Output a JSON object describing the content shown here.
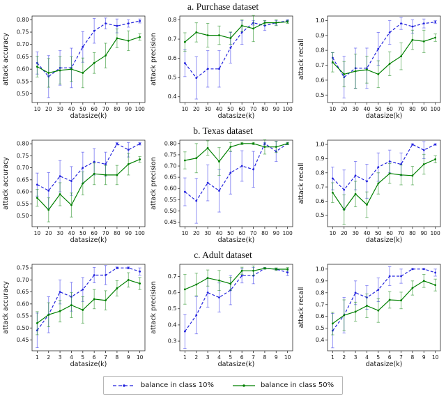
{
  "figure": {
    "background": "#ffffff",
    "spine_color": "#2a2a2a",
    "tick_label_color": "#111111"
  },
  "sections": [
    {
      "title": "a. Purchase dataset"
    },
    {
      "title": "b. Texas dataset"
    },
    {
      "title": "c. Adult dataset"
    }
  ],
  "legend": {
    "items": [
      {
        "label": "balance in class 10%",
        "color": "#2222dd",
        "dash": true
      },
      {
        "label": "balance in class 50%",
        "color": "#008000",
        "dash": false
      }
    ]
  },
  "chart_data": [
    {
      "type": "line",
      "dataset": "Purchase",
      "xlabel": "datasize(k)",
      "ylabel": "attack accuracy",
      "x": [
        10,
        20,
        30,
        40,
        50,
        60,
        70,
        80,
        90,
        100
      ],
      "xtick_labels": [
        "10",
        "20",
        "30",
        "40",
        "50",
        "60",
        "70",
        "80",
        "90",
        "100"
      ],
      "yticks": [
        0.5,
        0.55,
        0.6,
        0.65,
        0.7,
        0.75,
        0.8
      ],
      "ytick_labels": [
        "0.50",
        "0.55",
        "0.60",
        "0.65",
        "0.70",
        "0.75",
        "0.80"
      ],
      "ylim": [
        0.465,
        0.815
      ],
      "grid": false,
      "series": [
        {
          "name": "balance in class 10%",
          "color": "#2222dd",
          "ecolor": "rgba(60,60,235,0.55)",
          "dash": true,
          "values": [
            0.625,
            0.57,
            0.605,
            0.605,
            0.69,
            0.755,
            0.785,
            0.775,
            0.785,
            0.795
          ],
          "err": [
            0.045,
            0.085,
            0.07,
            0.08,
            0.062,
            0.05,
            0.022,
            0.028,
            0.015,
            0.008
          ]
        },
        {
          "name": "balance in class 50%",
          "color": "#008000",
          "ecolor": "rgba(30,140,30,0.55)",
          "dash": false,
          "values": [
            0.61,
            0.585,
            0.595,
            0.6,
            0.585,
            0.625,
            0.655,
            0.725,
            0.715,
            0.73
          ],
          "err": [
            0.042,
            0.058,
            0.055,
            0.05,
            0.06,
            0.042,
            0.05,
            0.038,
            0.04,
            0.013
          ]
        }
      ]
    },
    {
      "type": "line",
      "dataset": "Purchase",
      "xlabel": "datasize(k)",
      "ylabel": "attack precision",
      "x": [
        10,
        20,
        30,
        40,
        50,
        60,
        70,
        80,
        90,
        100
      ],
      "xtick_labels": [
        "10",
        "20",
        "30",
        "40",
        "50",
        "60",
        "70",
        "80",
        "90",
        "100"
      ],
      "yticks": [
        0.4,
        0.5,
        0.6,
        0.7,
        0.8
      ],
      "ytick_labels": [
        "0.4",
        "0.5",
        "0.6",
        "0.7",
        "0.8"
      ],
      "ylim": [
        0.37,
        0.82
      ],
      "grid": false,
      "series": [
        {
          "name": "balance in class 10%",
          "color": "#2222dd",
          "ecolor": "rgba(60,60,235,0.55)",
          "dash": true,
          "values": [
            0.575,
            0.498,
            0.545,
            0.545,
            0.655,
            0.735,
            0.785,
            0.77,
            0.785,
            0.795
          ],
          "err": [
            0.07,
            0.11,
            0.095,
            0.095,
            0.08,
            0.062,
            0.012,
            0.025,
            0.012,
            0.006
          ]
        },
        {
          "name": "balance in class 50%",
          "color": "#008000",
          "ecolor": "rgba(30,140,30,0.55)",
          "dash": false,
          "values": [
            0.685,
            0.735,
            0.72,
            0.72,
            0.705,
            0.77,
            0.755,
            0.785,
            0.785,
            0.79
          ],
          "err": [
            0.048,
            0.05,
            0.062,
            0.048,
            0.032,
            0.03,
            0.068,
            0.012,
            0.015,
            0.008
          ]
        }
      ]
    },
    {
      "type": "line",
      "dataset": "Purchase",
      "xlabel": "datasize(k)",
      "ylabel": "attack recall",
      "x": [
        10,
        20,
        30,
        40,
        50,
        60,
        70,
        80,
        90,
        100
      ],
      "xtick_labels": [
        "10",
        "20",
        "30",
        "40",
        "50",
        "60",
        "70",
        "80",
        "90",
        "100"
      ],
      "yticks": [
        0.5,
        0.6,
        0.7,
        0.8,
        0.9,
        1.0
      ],
      "ytick_labels": [
        "0.5",
        "0.6",
        "0.7",
        "0.8",
        "0.9",
        "1.0"
      ],
      "ylim": [
        0.45,
        1.03
      ],
      "grid": false,
      "series": [
        {
          "name": "balance in class 10%",
          "color": "#2222dd",
          "ecolor": "rgba(60,60,235,0.55)",
          "dash": true,
          "values": [
            0.75,
            0.62,
            0.68,
            0.68,
            0.81,
            0.92,
            0.98,
            0.96,
            0.98,
            0.99
          ],
          "err": [
            0.035,
            0.14,
            0.135,
            0.135,
            0.11,
            0.08,
            0.04,
            0.045,
            0.03,
            0.01
          ]
        },
        {
          "name": "balance in class 50%",
          "color": "#008000",
          "ecolor": "rgba(30,140,30,0.55)",
          "dash": false,
          "values": [
            0.72,
            0.64,
            0.66,
            0.67,
            0.64,
            0.71,
            0.76,
            0.87,
            0.86,
            0.885
          ],
          "err": [
            0.065,
            0.085,
            0.115,
            0.09,
            0.09,
            0.08,
            0.09,
            0.065,
            0.075,
            0.025
          ]
        }
      ]
    },
    {
      "type": "line",
      "dataset": "Texas",
      "xlabel": "datasize(k)",
      "ylabel": "attack accuracy",
      "x": [
        10,
        20,
        30,
        40,
        50,
        60,
        70,
        80,
        90,
        100
      ],
      "xtick_labels": [
        "10",
        "20",
        "30",
        "40",
        "50",
        "60",
        "70",
        "80",
        "90",
        "100"
      ],
      "yticks": [
        0.5,
        0.55,
        0.6,
        0.65,
        0.7,
        0.75,
        0.8
      ],
      "ytick_labels": [
        "0.50",
        "0.55",
        "0.60",
        "0.65",
        "0.70",
        "0.75",
        "0.80"
      ],
      "ylim": [
        0.455,
        0.815
      ],
      "grid": false,
      "series": [
        {
          "name": "balance in class 10%",
          "color": "#2222dd",
          "ecolor": "rgba(60,60,235,0.55)",
          "dash": true,
          "values": [
            0.63,
            0.605,
            0.665,
            0.645,
            0.7,
            0.725,
            0.715,
            0.8,
            0.775,
            0.8
          ],
          "err": [
            0.048,
            0.075,
            0.065,
            0.06,
            0.065,
            0.055,
            0.05,
            0.005,
            0.03,
            0.005
          ]
        },
        {
          "name": "balance in class 50%",
          "color": "#008000",
          "ecolor": "rgba(30,140,30,0.55)",
          "dash": false,
          "values": [
            0.575,
            0.525,
            0.59,
            0.545,
            0.635,
            0.675,
            0.67,
            0.67,
            0.715,
            0.735
          ],
          "err": [
            0.035,
            0.05,
            0.048,
            0.05,
            0.048,
            0.045,
            0.04,
            0.04,
            0.045,
            0.012
          ]
        }
      ]
    },
    {
      "type": "line",
      "dataset": "Texas",
      "xlabel": "datasize(k)",
      "ylabel": "attack precision",
      "x": [
        10,
        20,
        30,
        40,
        50,
        60,
        70,
        80,
        90,
        100
      ],
      "xtick_labels": [
        "10",
        "20",
        "30",
        "40",
        "50",
        "60",
        "70",
        "80",
        "90",
        "100"
      ],
      "yticks": [
        0.45,
        0.5,
        0.55,
        0.6,
        0.65,
        0.7,
        0.75,
        0.8
      ],
      "ytick_labels": [
        "0.45",
        "0.50",
        "0.55",
        "0.60",
        "0.65",
        "0.70",
        "0.75",
        "0.80"
      ],
      "ylim": [
        0.43,
        0.815
      ],
      "grid": false,
      "series": [
        {
          "name": "balance in class 10%",
          "color": "#2222dd",
          "ecolor": "rgba(60,60,235,0.55)",
          "dash": true,
          "values": [
            0.585,
            0.545,
            0.625,
            0.59,
            0.67,
            0.7,
            0.685,
            0.8,
            0.765,
            0.8
          ],
          "err": [
            0.062,
            0.1,
            0.08,
            0.095,
            0.095,
            0.068,
            0.08,
            0.005,
            0.045,
            0.005
          ]
        },
        {
          "name": "balance in class 50%",
          "color": "#008000",
          "ecolor": "rgba(30,140,30,0.55)",
          "dash": false,
          "values": [
            0.725,
            0.735,
            0.78,
            0.72,
            0.785,
            0.8,
            0.8,
            0.785,
            0.785,
            0.8
          ],
          "err": [
            0.038,
            0.065,
            0.032,
            0.062,
            0.02,
            0.005,
            0.005,
            0.032,
            0.025,
            0.005
          ]
        }
      ]
    },
    {
      "type": "line",
      "dataset": "Texas",
      "xlabel": "datasize(k)",
      "ylabel": "attack recall",
      "x": [
        10,
        20,
        30,
        40,
        50,
        60,
        70,
        80,
        90,
        100
      ],
      "xtick_labels": [
        "10",
        "20",
        "30",
        "40",
        "50",
        "60",
        "70",
        "80",
        "90",
        "100"
      ],
      "yticks": [
        0.5,
        0.6,
        0.7,
        0.8,
        0.9,
        1.0
      ],
      "ytick_labels": [
        "0.5",
        "0.6",
        "0.7",
        "0.8",
        "0.9",
        "1.0"
      ],
      "ylim": [
        0.42,
        1.03
      ],
      "grid": false,
      "series": [
        {
          "name": "balance in class 10%",
          "color": "#2222dd",
          "ecolor": "rgba(60,60,235,0.55)",
          "dash": true,
          "values": [
            0.76,
            0.68,
            0.78,
            0.74,
            0.84,
            0.88,
            0.86,
            1.0,
            0.96,
            1.0
          ],
          "err": [
            0.08,
            0.14,
            0.1,
            0.12,
            0.1,
            0.08,
            0.08,
            0.005,
            0.06,
            0.005
          ]
        },
        {
          "name": "balance in class 50%",
          "color": "#008000",
          "ecolor": "rgba(30,140,30,0.55)",
          "dash": false,
          "values": [
            0.66,
            0.54,
            0.65,
            0.575,
            0.725,
            0.795,
            0.785,
            0.78,
            0.86,
            0.895
          ],
          "err": [
            0.07,
            0.105,
            0.09,
            0.09,
            0.075,
            0.07,
            0.07,
            0.065,
            0.07,
            0.025
          ]
        }
      ]
    },
    {
      "type": "line",
      "dataset": "Adult",
      "xlabel": "datasize(k)",
      "ylabel": "attack accuracy",
      "x": [
        1,
        2,
        3,
        4,
        5,
        6,
        7,
        8,
        9,
        10
      ],
      "xtick_labels": [
        "1",
        "2",
        "3",
        "4",
        "5",
        "6",
        "7",
        "8",
        "9",
        "10"
      ],
      "yticks": [
        0.45,
        0.5,
        0.55,
        0.6,
        0.65,
        0.7,
        0.75
      ],
      "ytick_labels": [
        "0.45",
        "0.50",
        "0.55",
        "0.60",
        "0.65",
        "0.70",
        "0.75"
      ],
      "ylim": [
        0.405,
        0.765
      ],
      "grid": false,
      "series": [
        {
          "name": "balance in class 10%",
          "color": "#2222dd",
          "ecolor": "rgba(60,60,235,0.55)",
          "dash": true,
          "values": [
            0.49,
            0.555,
            0.65,
            0.63,
            0.66,
            0.72,
            0.72,
            0.75,
            0.75,
            0.735
          ],
          "err": [
            0.072,
            0.075,
            0.05,
            0.06,
            0.05,
            0.032,
            0.04,
            0.004,
            0.004,
            0.015
          ]
        },
        {
          "name": "balance in class 50%",
          "color": "#008000",
          "ecolor": "rgba(30,140,30,0.55)",
          "dash": false,
          "values": [
            0.52,
            0.555,
            0.57,
            0.595,
            0.575,
            0.62,
            0.615,
            0.665,
            0.7,
            0.685
          ],
          "err": [
            0.048,
            0.05,
            0.045,
            0.052,
            0.055,
            0.04,
            0.04,
            0.032,
            0.03,
            0.025
          ]
        }
      ]
    },
    {
      "type": "line",
      "dataset": "Adult",
      "xlabel": "datasize(k)",
      "ylabel": "attack precision",
      "x": [
        1,
        2,
        3,
        4,
        5,
        6,
        7,
        8,
        9,
        10
      ],
      "xtick_labels": [
        "1",
        "2",
        "3",
        "4",
        "5",
        "6",
        "7",
        "8",
        "9",
        "10"
      ],
      "yticks": [
        0.3,
        0.4,
        0.5,
        0.6,
        0.7
      ],
      "ytick_labels": [
        "0.3",
        "0.4",
        "0.5",
        "0.6",
        "0.7"
      ],
      "ylim": [
        0.24,
        0.775
      ],
      "grid": false,
      "series": [
        {
          "name": "balance in class 10%",
          "color": "#2222dd",
          "ecolor": "rgba(60,60,235,0.55)",
          "dash": true,
          "values": [
            0.36,
            0.46,
            0.6,
            0.57,
            0.615,
            0.705,
            0.705,
            0.75,
            0.745,
            0.725
          ],
          "err": [
            0.105,
            0.115,
            0.09,
            0.09,
            0.09,
            0.045,
            0.05,
            0.005,
            0.005,
            0.02
          ]
        },
        {
          "name": "balance in class 50%",
          "color": "#008000",
          "ecolor": "rgba(30,140,30,0.55)",
          "dash": false,
          "values": [
            0.62,
            0.65,
            0.69,
            0.675,
            0.655,
            0.735,
            0.735,
            0.75,
            0.745,
            0.745
          ],
          "err": [
            0.092,
            0.07,
            0.05,
            0.062,
            0.04,
            0.022,
            0.03,
            0.005,
            0.008,
            0.01
          ]
        }
      ]
    },
    {
      "type": "line",
      "dataset": "Adult",
      "xlabel": "datasize(k)",
      "ylabel": "attack recall",
      "x": [
        1,
        2,
        3,
        4,
        5,
        6,
        7,
        8,
        9,
        10
      ],
      "xtick_labels": [
        "1",
        "2",
        "3",
        "4",
        "5",
        "6",
        "7",
        "8",
        "9",
        "10"
      ],
      "yticks": [
        0.4,
        0.5,
        0.6,
        0.7,
        0.8,
        0.9,
        1.0
      ],
      "ytick_labels": [
        "0.4",
        "0.5",
        "0.6",
        "0.7",
        "0.8",
        "0.9",
        "1.0"
      ],
      "ylim": [
        0.31,
        1.04
      ],
      "grid": false,
      "series": [
        {
          "name": "balance in class 10%",
          "color": "#2222dd",
          "ecolor": "rgba(60,60,235,0.55)",
          "dash": true,
          "values": [
            0.48,
            0.61,
            0.8,
            0.76,
            0.825,
            0.94,
            0.94,
            1.0,
            1.0,
            0.97
          ],
          "err": [
            0.145,
            0.15,
            0.1,
            0.1,
            0.1,
            0.08,
            0.06,
            0.005,
            0.005,
            0.03
          ]
        },
        {
          "name": "balance in class 50%",
          "color": "#008000",
          "ecolor": "rgba(30,140,30,0.55)",
          "dash": false,
          "values": [
            0.54,
            0.61,
            0.64,
            0.69,
            0.65,
            0.74,
            0.735,
            0.84,
            0.9,
            0.865
          ],
          "err": [
            0.095,
            0.13,
            0.08,
            0.1,
            0.1,
            0.07,
            0.07,
            0.06,
            0.055,
            0.05
          ]
        }
      ]
    }
  ]
}
